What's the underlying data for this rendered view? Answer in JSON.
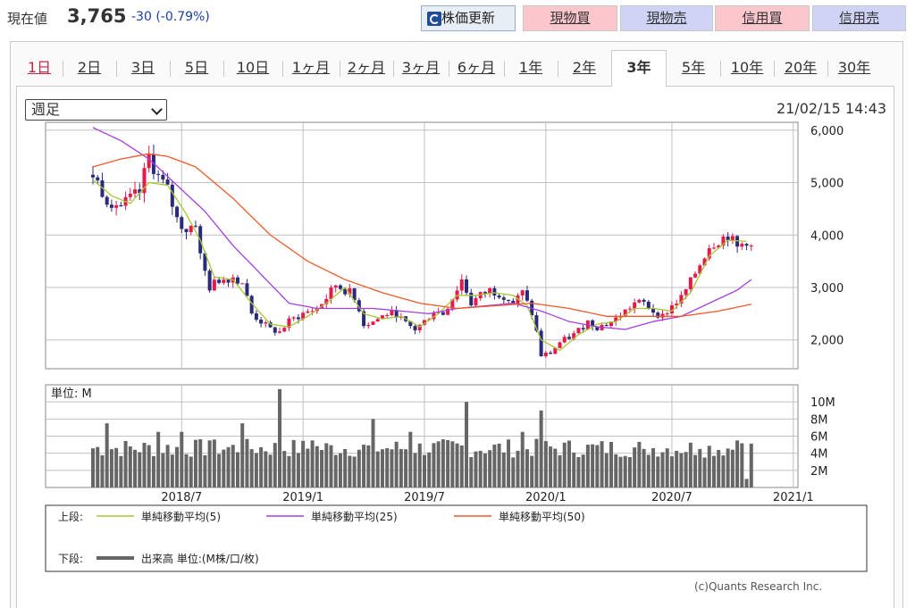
{
  "header": {
    "price_label": "現在値",
    "price_value": "3,765",
    "price_change": "-30 (-0.79%)",
    "refresh_label": "株価更新",
    "buttons": [
      {
        "label": "現物買",
        "kind": "buy"
      },
      {
        "label": "現物売",
        "kind": "sell"
      },
      {
        "label": "信用買",
        "kind": "buy"
      },
      {
        "label": "信用売",
        "kind": "sell"
      }
    ]
  },
  "tabs": [
    "1日",
    "2日",
    "3日",
    "5日",
    "10日",
    "1ヶ月",
    "2ヶ月",
    "3ヶ月",
    "6ヶ月",
    "1年",
    "2年",
    "3年",
    "5年",
    "10年",
    "20年",
    "30年"
  ],
  "active_tab": "3年",
  "period_select": "週足",
  "timestamp": "21/02/15 14:43",
  "credit": "(c)Quants Research Inc.",
  "colors": {
    "up": "#e6194b",
    "down": "#2a2a7a",
    "ma5": "#a6c832",
    "ma25": "#a43ee0",
    "ma50": "#f05a28",
    "volume": "#666666",
    "grid": "#c0c0c0"
  },
  "chart_data": {
    "type": "candlestick",
    "price_axis": {
      "ticks": [
        "6,000",
        "5,000",
        "4,000",
        "3,000",
        "2,000"
      ],
      "tick_values": [
        6000,
        5000,
        4000,
        3000,
        2000
      ],
      "ylim": [
        1450,
        6150
      ]
    },
    "volume_axis": {
      "unit_label": "単位: M",
      "ticks": [
        "10M",
        "8M",
        "6M",
        "4M",
        "2M"
      ],
      "tick_values": [
        10,
        8,
        6,
        4,
        2
      ],
      "ylim": [
        0,
        12
      ]
    },
    "x_tick_labels": [
      "2018/7",
      "2019/1",
      "2019/7",
      "2020/1",
      "2020/7",
      "2021/1"
    ],
    "x_tick_weeks": [
      19,
      45,
      71,
      97,
      124,
      150
    ],
    "weeks_total": 156,
    "price_path": [
      [
        0,
        5150
      ],
      [
        3,
        4700
      ],
      [
        6,
        4550
      ],
      [
        10,
        4800
      ],
      [
        12,
        5500
      ],
      [
        14,
        5100
      ],
      [
        16,
        4850
      ],
      [
        18,
        4300
      ],
      [
        20,
        4100
      ],
      [
        22,
        4250
      ],
      [
        23,
        3600
      ],
      [
        25,
        3000
      ],
      [
        27,
        3150
      ],
      [
        30,
        3200
      ],
      [
        32,
        3100
      ],
      [
        34,
        2500
      ],
      [
        36,
        2350
      ],
      [
        38,
        2200
      ],
      [
        40,
        2150
      ],
      [
        42,
        2350
      ],
      [
        45,
        2500
      ],
      [
        48,
        2600
      ],
      [
        50,
        2800
      ],
      [
        52,
        3050
      ],
      [
        53,
        3000
      ],
      [
        55,
        2900
      ],
      [
        57,
        2600
      ],
      [
        58,
        2300
      ],
      [
        60,
        2350
      ],
      [
        63,
        2500
      ],
      [
        65,
        2500
      ],
      [
        67,
        2300
      ],
      [
        69,
        2200
      ],
      [
        71,
        2350
      ],
      [
        73,
        2550
      ],
      [
        75,
        2500
      ],
      [
        77,
        2800
      ],
      [
        79,
        3150
      ],
      [
        81,
        2700
      ],
      [
        83,
        2850
      ],
      [
        85,
        2950
      ],
      [
        88,
        2850
      ],
      [
        90,
        2700
      ],
      [
        92,
        2900
      ],
      [
        94,
        2500
      ],
      [
        95,
        2150
      ],
      [
        96,
        1700
      ],
      [
        98,
        1750
      ],
      [
        100,
        1950
      ],
      [
        103,
        2100
      ],
      [
        106,
        2350
      ],
      [
        108,
        2250
      ],
      [
        110,
        2300
      ],
      [
        112,
        2400
      ],
      [
        114,
        2550
      ],
      [
        116,
        2700
      ],
      [
        118,
        2700
      ],
      [
        120,
        2550
      ],
      [
        122,
        2450
      ],
      [
        124,
        2650
      ],
      [
        126,
        2800
      ],
      [
        128,
        3100
      ],
      [
        130,
        3450
      ],
      [
        132,
        3800
      ],
      [
        134,
        3900
      ],
      [
        136,
        4000
      ],
      [
        138,
        3750
      ],
      [
        140,
        3900
      ],
      [
        141,
        3765
      ]
    ],
    "series": [
      {
        "name": "単純移動平均(5)",
        "values": [
          [
            0,
            5050
          ],
          [
            4,
            4750
          ],
          [
            8,
            4600
          ],
          [
            12,
            5000
          ],
          [
            16,
            4950
          ],
          [
            20,
            4400
          ],
          [
            23,
            3900
          ],
          [
            26,
            3200
          ],
          [
            30,
            3150
          ],
          [
            34,
            2700
          ],
          [
            38,
            2300
          ],
          [
            42,
            2250
          ],
          [
            46,
            2450
          ],
          [
            50,
            2700
          ],
          [
            54,
            3000
          ],
          [
            58,
            2500
          ],
          [
            62,
            2400
          ],
          [
            66,
            2450
          ],
          [
            70,
            2250
          ],
          [
            74,
            2500
          ],
          [
            78,
            2850
          ],
          [
            82,
            2850
          ],
          [
            86,
            2900
          ],
          [
            90,
            2850
          ],
          [
            93,
            2650
          ],
          [
            96,
            2000
          ],
          [
            100,
            1800
          ],
          [
            104,
            2100
          ],
          [
            108,
            2300
          ],
          [
            112,
            2350
          ],
          [
            116,
            2600
          ],
          [
            120,
            2600
          ],
          [
            124,
            2550
          ],
          [
            128,
            2900
          ],
          [
            132,
            3600
          ],
          [
            136,
            3900
          ],
          [
            140,
            3880
          ]
        ]
      },
      {
        "name": "単純移動平均(25)",
        "values": [
          [
            0,
            6050
          ],
          [
            6,
            5800
          ],
          [
            12,
            5450
          ],
          [
            18,
            4950
          ],
          [
            24,
            4450
          ],
          [
            30,
            3800
          ],
          [
            36,
            3250
          ],
          [
            42,
            2700
          ],
          [
            48,
            2600
          ],
          [
            54,
            2600
          ],
          [
            60,
            2600
          ],
          [
            66,
            2550
          ],
          [
            72,
            2500
          ],
          [
            78,
            2600
          ],
          [
            84,
            2650
          ],
          [
            90,
            2700
          ],
          [
            96,
            2550
          ],
          [
            102,
            2350
          ],
          [
            108,
            2250
          ],
          [
            114,
            2200
          ],
          [
            120,
            2350
          ],
          [
            126,
            2450
          ],
          [
            132,
            2700
          ],
          [
            138,
            2950
          ],
          [
            141,
            3150
          ]
        ]
      },
      {
        "name": "単純移動平均(50)",
        "values": [
          [
            0,
            5300
          ],
          [
            6,
            5450
          ],
          [
            12,
            5550
          ],
          [
            16,
            5500
          ],
          [
            22,
            5300
          ],
          [
            30,
            4700
          ],
          [
            38,
            4000
          ],
          [
            46,
            3500
          ],
          [
            54,
            3150
          ],
          [
            62,
            2900
          ],
          [
            70,
            2700
          ],
          [
            78,
            2600
          ],
          [
            86,
            2650
          ],
          [
            94,
            2700
          ],
          [
            102,
            2600
          ],
          [
            110,
            2450
          ],
          [
            118,
            2450
          ],
          [
            126,
            2450
          ],
          [
            134,
            2550
          ],
          [
            141,
            2680
          ]
        ]
      }
    ],
    "volume_peaks": [
      [
        3,
        7.5
      ],
      [
        14,
        6.5
      ],
      [
        19,
        6.5
      ],
      [
        25,
        5.5
      ],
      [
        32,
        7.5
      ],
      [
        40,
        11.5
      ],
      [
        47,
        5.5
      ],
      [
        60,
        8
      ],
      [
        68,
        6.5
      ],
      [
        80,
        10
      ],
      [
        92,
        6.5
      ],
      [
        96,
        9
      ],
      [
        106,
        5
      ],
      [
        118,
        4.5
      ],
      [
        130,
        4.5
      ],
      [
        138,
        5.5
      ],
      [
        140,
        1
      ]
    ],
    "volume_base": 3.5,
    "legend": {
      "upper_label": "上段:",
      "lower_label": "下段:",
      "items": [
        "単純移動平均(5)",
        "単純移動平均(25)",
        "単純移動平均(50)"
      ],
      "volume_item": "出来高 単位:(M株/口/枚)"
    }
  }
}
